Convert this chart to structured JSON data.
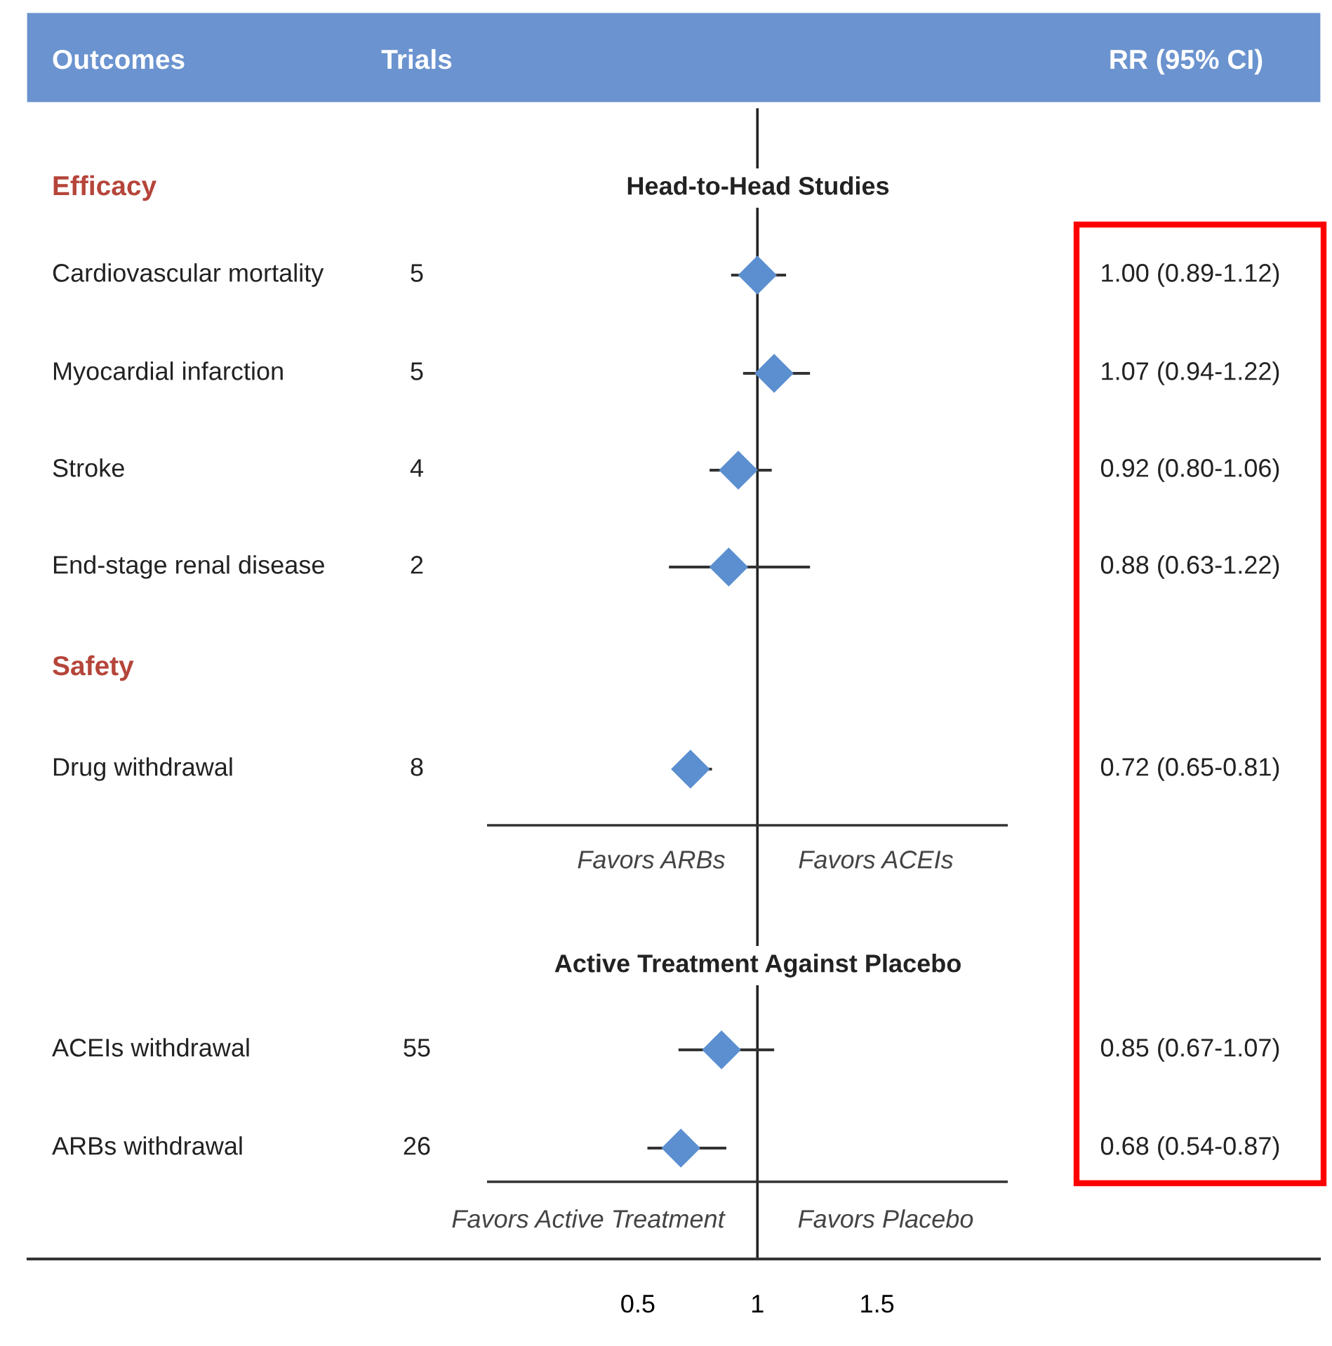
{
  "chart_data": {
    "type": "scatter",
    "orientation": "horizontal",
    "marker": "diamond",
    "color": "#5b8fd0",
    "categories": [
      "Cardiovascular mortality",
      "Myocardial infarction",
      "Stroke",
      "End-stage renal disease",
      "Drug withdrawal",
      "ACEIs withdrawal",
      "ARBs withdrawal"
    ],
    "values": [
      1.0,
      1.07,
      0.92,
      0.88,
      0.72,
      0.85,
      0.68
    ],
    "errors": [
      [
        0.89,
        1.12
      ],
      [
        0.94,
        1.22
      ],
      [
        0.8,
        1.06
      ],
      [
        0.63,
        1.22
      ],
      [
        0.65,
        0.81
      ],
      [
        0.67,
        1.07
      ],
      [
        0.54,
        0.87
      ]
    ],
    "xlim": [
      -2.05,
      3.35
    ],
    "xticks": [
      0.5,
      1,
      1.5
    ],
    "ref_lines": [
      {
        "axis": "x",
        "value": 1,
        "color": "#222222"
      }
    ],
    "annotations": [
      "Outcomes",
      "Trials",
      "RR (95% CI)",
      "Efficacy",
      "Safety",
      "Head-to-Head Studies",
      "Favors ARBs",
      "Favors ACEIs",
      "Active Treatment Against Placebo",
      "Favors Active Treatment",
      "Favors Placebo",
      "5",
      "5",
      "4",
      "2",
      "8",
      "55",
      "26",
      "1.00 (0.89-1.12)",
      "1.07 (0.94-1.22)",
      "0.92 (0.80-1.06)",
      "0.88 (0.63-1.22)",
      "0.72 (0.65-0.81)",
      "0.85 (0.67-1.07)",
      "0.68 (0.54-0.87)"
    ]
  }
}
